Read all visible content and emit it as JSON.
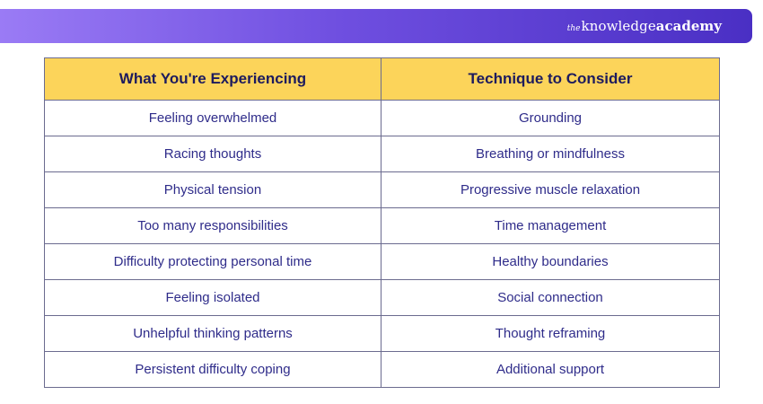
{
  "brand": {
    "prefix": "the",
    "name_regular": "knowledge",
    "name_bold": "academy"
  },
  "colors": {
    "header_bg": "#fcd45a",
    "text": "#2f2c8a",
    "border": "#6b6b8f",
    "banner_start": "#9a7bf5",
    "banner_end": "#4a2fc4"
  },
  "table": {
    "headers": [
      "What You're Experiencing",
      "Technique to Consider"
    ],
    "rows": [
      [
        "Feeling overwhelmed",
        "Grounding"
      ],
      [
        "Racing thoughts",
        "Breathing or mindfulness"
      ],
      [
        "Physical tension",
        "Progressive muscle relaxation"
      ],
      [
        "Too many responsibilities",
        "Time management"
      ],
      [
        "Difficulty protecting personal time",
        "Healthy boundaries"
      ],
      [
        "Feeling isolated",
        "Social connection"
      ],
      [
        "Unhelpful thinking patterns",
        "Thought reframing"
      ],
      [
        "Persistent difficulty coping",
        "Additional support"
      ]
    ]
  }
}
